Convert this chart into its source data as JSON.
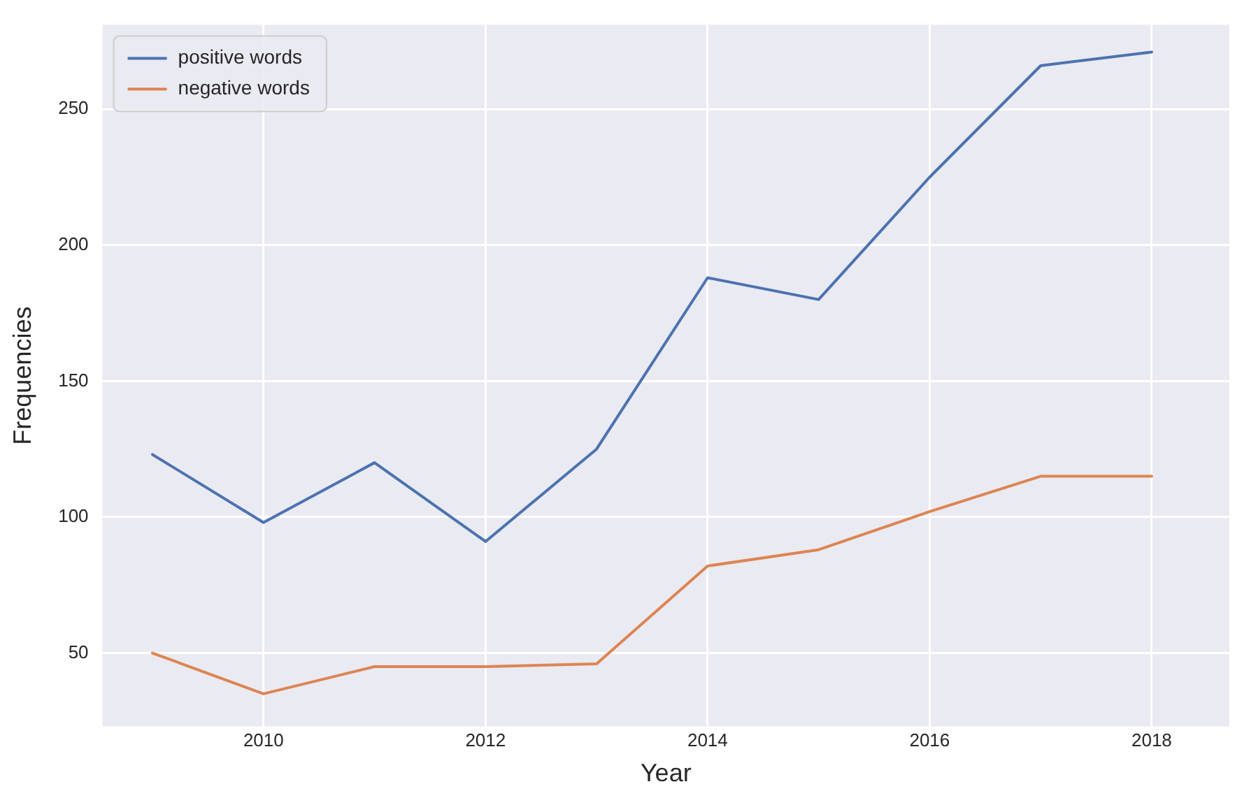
{
  "chart_data": {
    "type": "line",
    "xlabel": "Year",
    "ylabel": "Frequencies",
    "x": [
      2009,
      2010,
      2011,
      2012,
      2013,
      2014,
      2015,
      2016,
      2017,
      2018
    ],
    "series": [
      {
        "name": "positive words",
        "color": "#4c72b0",
        "values": [
          123,
          98,
          120,
          91,
          125,
          188,
          180,
          225,
          266,
          271
        ]
      },
      {
        "name": "negative words",
        "color": "#dd8452",
        "values": [
          50,
          35,
          45,
          45,
          46,
          82,
          88,
          102,
          115,
          115
        ]
      }
    ],
    "xlim": [
      2008.55,
      2018.7
    ],
    "xticks": [
      2010,
      2012,
      2014,
      2016,
      2018
    ],
    "ylim": [
      23,
      281
    ],
    "yticks": [
      50,
      100,
      150,
      200,
      250
    ],
    "grid": true,
    "legend": "top left",
    "marker": "none",
    "line_style": "solid"
  }
}
